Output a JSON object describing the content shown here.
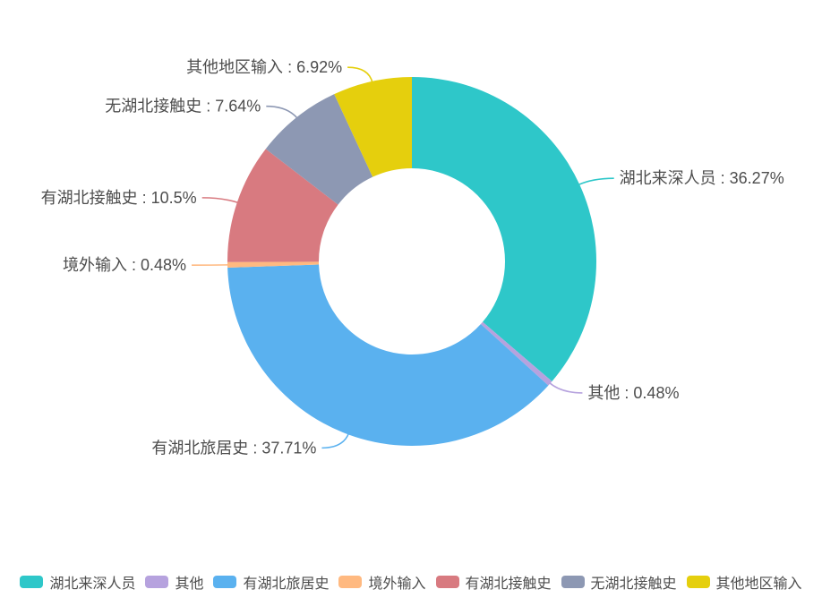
{
  "page": {
    "background_color": "#ffffff",
    "text_color": "#4d4d4d"
  },
  "chart_data": {
    "type": "pie",
    "subtype": "donut",
    "title": "",
    "unit": "%",
    "label_format": "{name} : {value}%",
    "labels_outside": true,
    "leader_lines": true,
    "start_angle": "12-oclock",
    "direction": "clockwise",
    "legend_position": "bottom",
    "slices": [
      {
        "name": "湖北来深人员",
        "value": 36.27,
        "color": "#2ec7c9",
        "label": "湖北来深人员 : 36.27%"
      },
      {
        "name": "其他",
        "value": 0.48,
        "color": "#b6a2de",
        "label": "其他 : 0.48%"
      },
      {
        "name": "有湖北旅居史",
        "value": 37.71,
        "color": "#5ab1ef",
        "label": "有湖北旅居史 : 37.71%"
      },
      {
        "name": "境外输入",
        "value": 0.48,
        "color": "#ffb980",
        "label": "境外输入 : 0.48%"
      },
      {
        "name": "有湖北接触史",
        "value": 10.5,
        "color": "#d87a80",
        "label": "有湖北接触史 : 10.5%"
      },
      {
        "name": "无湖北接触史",
        "value": 7.64,
        "color": "#8d98b3",
        "label": "无湖北接触史 : 7.64%"
      },
      {
        "name": "其他地区输入",
        "value": 6.92,
        "color": "#e5cf0d",
        "label": "其他地区输入 : 6.92%"
      }
    ],
    "legend": [
      "湖北来深人员",
      "其他",
      "有湖北旅居史",
      "境外输入",
      "有湖北接触史",
      "无湖北接触史",
      "其他地区输入"
    ]
  }
}
